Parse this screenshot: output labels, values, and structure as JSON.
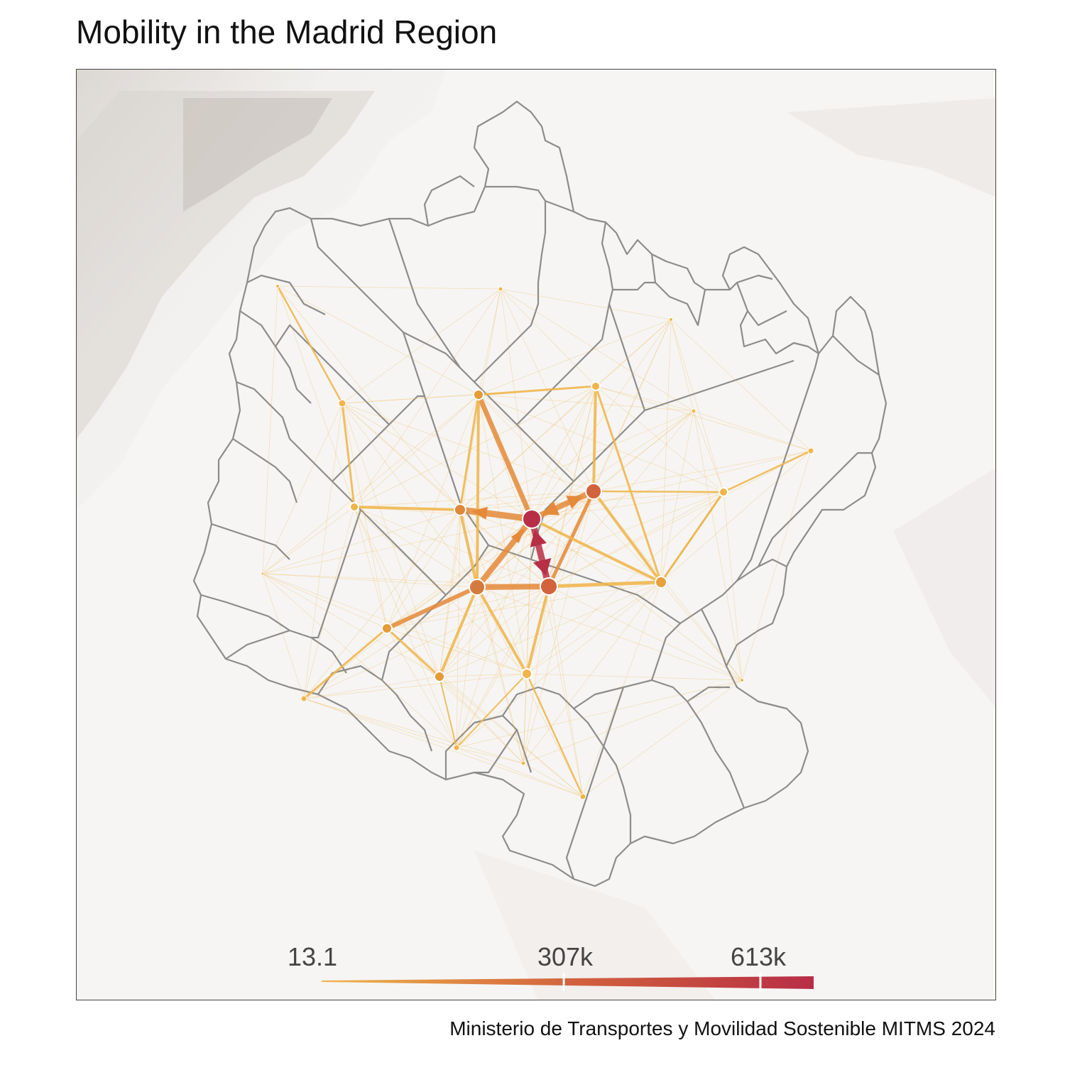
{
  "title": "Mobility in the Madrid Region",
  "caption": "Ministerio de Transportes y Movilidad Sostenible MITMS 2024",
  "legend": {
    "labels": [
      "13.1",
      "307k",
      "613k"
    ],
    "min_value": 13.1,
    "mid_value": 307000,
    "max_value": 613000,
    "color_low": "#f0b54a",
    "color_mid": "#d2633d",
    "color_high": "#b82e46"
  },
  "colors": {
    "boundary": "#8c8c8c",
    "hub": "#b82e46",
    "flow_low": "#f0b54a",
    "flow_mid": "#e48a3a",
    "flow_high": "#b82e46",
    "frame": "#444444"
  }
}
